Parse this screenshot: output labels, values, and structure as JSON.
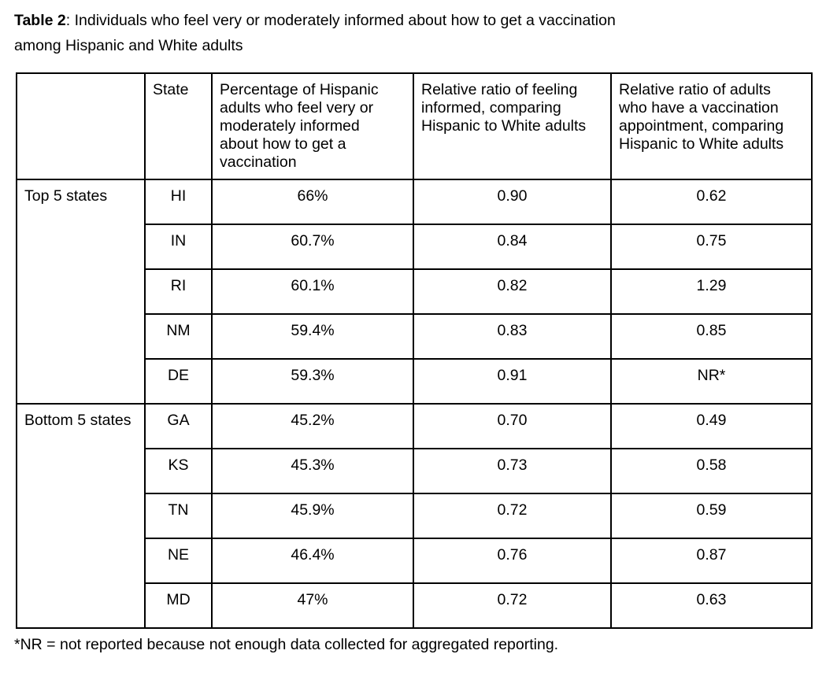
{
  "title": {
    "bold": "Table 2",
    "rest": ": Individuals who feel very or moderately informed about how to get a vaccination\namong Hispanic and White adults"
  },
  "table": {
    "headers": {
      "group": "",
      "state": "State",
      "pct": "Percentage of Hispanic\nadults who feel very or\nmoderately informed\nabout how to get a\nvaccination",
      "ratio_informed": "Relative ratio of feeling\ninformed, comparing\nHispanic to White adults",
      "ratio_appt": "Relative ratio of adults\nwho have a vaccination\nappointment, comparing\nHispanic to White adults"
    },
    "groups": [
      {
        "label": "Top 5 states",
        "rows": [
          {
            "state": "HI",
            "pct": "66%",
            "ratio_informed": "0.90",
            "ratio_appt": "0.62"
          },
          {
            "state": "IN",
            "pct": "60.7%",
            "ratio_informed": "0.84",
            "ratio_appt": "0.75"
          },
          {
            "state": "RI",
            "pct": "60.1%",
            "ratio_informed": "0.82",
            "ratio_appt": "1.29"
          },
          {
            "state": "NM",
            "pct": "59.4%",
            "ratio_informed": "0.83",
            "ratio_appt": "0.85"
          },
          {
            "state": "DE",
            "pct": "59.3%",
            "ratio_informed": "0.91",
            "ratio_appt": "NR*"
          }
        ]
      },
      {
        "label": "Bottom 5 states",
        "rows": [
          {
            "state": "GA",
            "pct": "45.2%",
            "ratio_informed": "0.70",
            "ratio_appt": "0.49"
          },
          {
            "state": "KS",
            "pct": "45.3%",
            "ratio_informed": "0.73",
            "ratio_appt": "0.58"
          },
          {
            "state": "TN",
            "pct": "45.9%",
            "ratio_informed": "0.72",
            "ratio_appt": "0.59"
          },
          {
            "state": "NE",
            "pct": "46.4%",
            "ratio_informed": "0.76",
            "ratio_appt": "0.87"
          },
          {
            "state": "MD",
            "pct": "47%",
            "ratio_informed": "0.72",
            "ratio_appt": "0.63"
          }
        ]
      }
    ]
  },
  "footnote": "*NR = not reported because not enough data collected for aggregated reporting."
}
